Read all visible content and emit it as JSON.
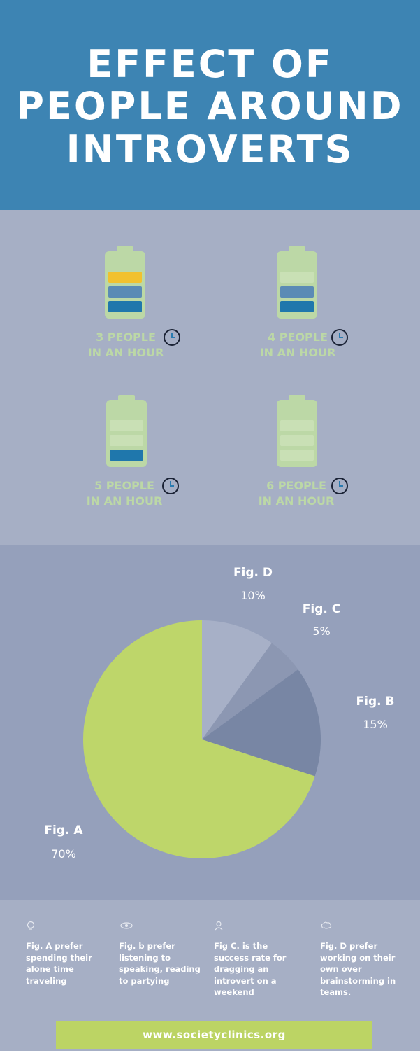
{
  "title": {
    "line1": "EFFECT OF",
    "line2": "PEOPLE AROUND",
    "line3": "INTROVERTS"
  },
  "batteries": [
    {
      "line1": "3 PEOPLE",
      "line2": "IN AN HOUR",
      "charge_bars": 3
    },
    {
      "line1": "4 PEOPLE",
      "line2": "IN AN HOUR",
      "charge_bars": 2
    },
    {
      "line1": "5 PEOPLE",
      "line2": "IN AN HOUR",
      "charge_bars": 1
    },
    {
      "line1": "6 PEOPLE",
      "line2": "IN AN HOUR",
      "charge_bars": 0
    }
  ],
  "chart_data": {
    "type": "pie",
    "slices": [
      {
        "label": "Fig. A",
        "value": 70,
        "display": "70%",
        "color": "#bed66a"
      },
      {
        "label": "Fig. B",
        "value": 15,
        "display": "15%",
        "color": "#7886a4"
      },
      {
        "label": "Fig. C",
        "value": 5,
        "display": "5%",
        "color": "#8c97b2"
      },
      {
        "label": "Fig. D",
        "value": 10,
        "display": "10%",
        "color": "#a7b0c7"
      }
    ]
  },
  "notes": [
    {
      "icon": "bulb-icon",
      "text": "Fig. A prefer spending their alone time traveling"
    },
    {
      "icon": "eye-icon",
      "text": "Fig.  b prefer listening to speaking, reading to partying"
    },
    {
      "icon": "person-icon",
      "text": "Fig C. is the success rate for dragging an introvert on a weekend"
    },
    {
      "icon": "brain-icon",
      "text": "Fig. D prefer working on their own over brainstorming in teams."
    }
  ],
  "footer": {
    "url": "www.societyclinics.org"
  },
  "colors": {
    "header_bg": "#3d84b3",
    "battery_bg": "#a6afc5",
    "pie_bg": "#95a0bb",
    "battery_shell": "#bcd8a6",
    "charge_yellow": "#f2c12e",
    "charge_mid": "#5b8bb5",
    "charge_dark": "#1f77ac",
    "footer_bar": "#bcd464"
  }
}
